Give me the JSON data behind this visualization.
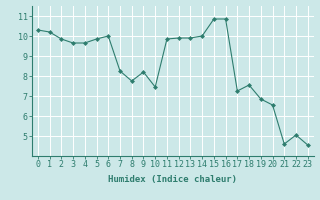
{
  "x": [
    0,
    1,
    2,
    3,
    4,
    5,
    6,
    7,
    8,
    9,
    10,
    11,
    12,
    13,
    14,
    15,
    16,
    17,
    18,
    19,
    20,
    21,
    22,
    23
  ],
  "y": [
    10.3,
    10.2,
    9.85,
    9.65,
    9.65,
    9.85,
    10.0,
    8.25,
    7.75,
    8.2,
    7.45,
    9.85,
    9.9,
    9.9,
    10.0,
    10.85,
    10.85,
    7.25,
    7.55,
    6.85,
    6.55,
    4.6,
    5.05,
    4.55
  ],
  "line_color": "#2e7d6e",
  "marker": "D",
  "marker_size": 2.0,
  "bg_color": "#cce8e8",
  "grid_color": "#ffffff",
  "xlabel": "Humidex (Indice chaleur)",
  "ylim": [
    4.0,
    11.5
  ],
  "xlim": [
    -0.5,
    23.5
  ],
  "yticks": [
    5,
    6,
    7,
    8,
    9,
    10,
    11
  ],
  "xticks": [
    0,
    1,
    2,
    3,
    4,
    5,
    6,
    7,
    8,
    9,
    10,
    11,
    12,
    13,
    14,
    15,
    16,
    17,
    18,
    19,
    20,
    21,
    22,
    23
  ],
  "label_fontsize": 6.5,
  "tick_fontsize": 6.0
}
